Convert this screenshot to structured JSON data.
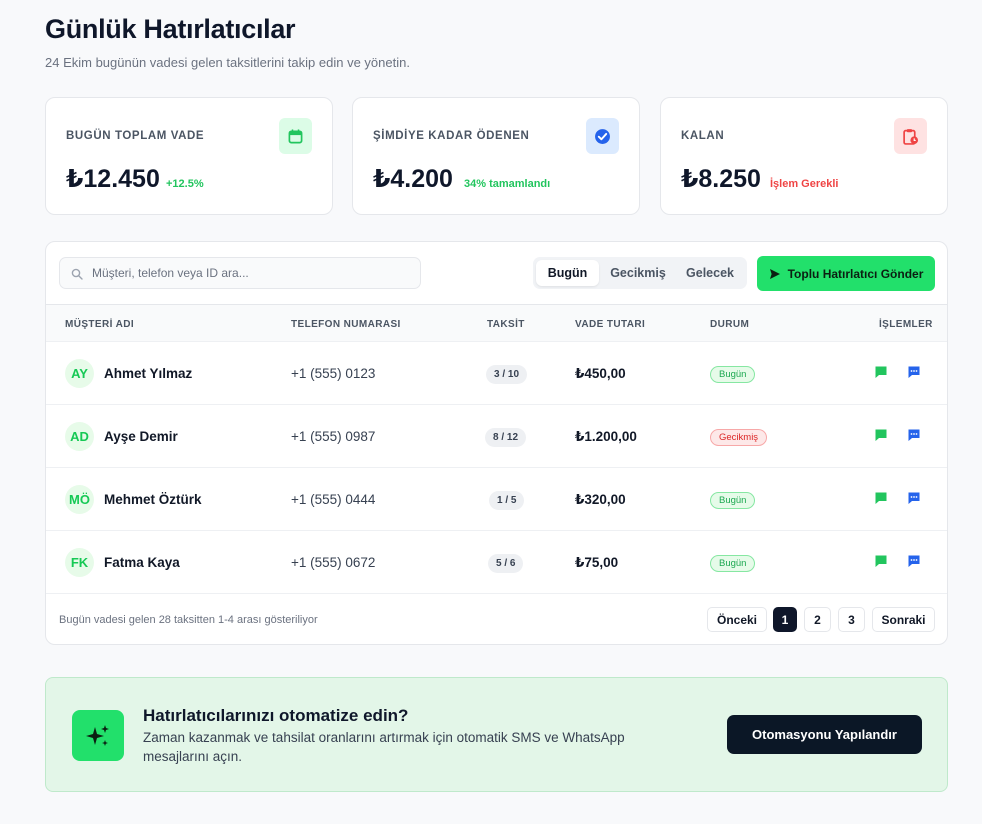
{
  "header": {
    "title": "Günlük Hatırlatıcılar",
    "subtitle": "24 Ekim bugünün vadesi gelen taksitlerini takip edin ve yönetin."
  },
  "cards": [
    {
      "label": "BUGÜN TOPLAM VADE",
      "value": "₺12.450",
      "note": "+12.5%",
      "note_color": "#22c55e",
      "icon": "calendar-icon",
      "icon_bg": "#dcfce7",
      "icon_color": "#22c55e"
    },
    {
      "label": "ŞİMDİYE KADAR ÖDENEN",
      "value": "₺4.200",
      "note": "34% tamamlandı",
      "note_color": "#22c55e",
      "icon": "check-badge-icon",
      "icon_bg": "#dbeafe",
      "icon_color": "#2563eb"
    },
    {
      "label": "KALAN",
      "value": "₺8.250",
      "note": "İşlem Gerekli",
      "note_color": "#ef4444",
      "icon": "clipboard-clock-icon",
      "icon_bg": "#fee2e2",
      "icon_color": "#ef4444"
    }
  ],
  "toolbar": {
    "search_placeholder": "Müşteri, telefon veya ID ara...",
    "filters": [
      "Bugün",
      "Gecikmiş",
      "Gelecek"
    ],
    "active_filter": "Bugün",
    "bulk_button": "Toplu Hatırlatıcı Gönder"
  },
  "table": {
    "columns": [
      "MÜŞTERİ ADI",
      "TELEFON NUMARASI",
      "TAKSİT",
      "VADE TUTARI",
      "DURUM",
      "İŞLEMLER"
    ],
    "rows": [
      {
        "initials": "AY",
        "name": "Ahmet Yılmaz",
        "phone": "+1 (555) 0123",
        "installment": "3 / 10",
        "amount": "₺450,00",
        "status": "Bugün",
        "status_type": "today"
      },
      {
        "initials": "AD",
        "name": "Ayşe Demir",
        "phone": "+1 (555) 0987",
        "installment": "8 / 12",
        "amount": "₺1.200,00",
        "status": "Gecikmiş",
        "status_type": "late"
      },
      {
        "initials": "MÖ",
        "name": "Mehmet Öztürk",
        "phone": "+1 (555) 0444",
        "installment": "1 / 5",
        "amount": "₺320,00",
        "status": "Bugün",
        "status_type": "today"
      },
      {
        "initials": "FK",
        "name": "Fatma Kaya",
        "phone": "+1 (555) 0672",
        "installment": "5 / 6",
        "amount": "₺75,00",
        "status": "Bugün",
        "status_type": "today"
      }
    ],
    "row_actions": [
      "whatsapp-icon",
      "sms-icon"
    ]
  },
  "pagination": {
    "summary": "Bugün vadesi gelen 28 taksitten 1-4 arası gösteriliyor",
    "prev": "Önceki",
    "pages": [
      "1",
      "2",
      "3"
    ],
    "current": "1",
    "next": "Sonraki"
  },
  "promo": {
    "icon": "sparkles-icon",
    "title": "Hatırlatıcılarınızı otomatize edin?",
    "text": "Zaman kazanmak ve tahsilat oranlarını artırmak için otomatik SMS ve WhatsApp mesajlarını açın.",
    "button": "Otomasyonu Yapılandır"
  },
  "colors": {
    "accent": "#22e06b",
    "dark": "#0f172a",
    "success": "#22c55e",
    "danger": "#ef4444",
    "sms_blue": "#2563eb"
  }
}
